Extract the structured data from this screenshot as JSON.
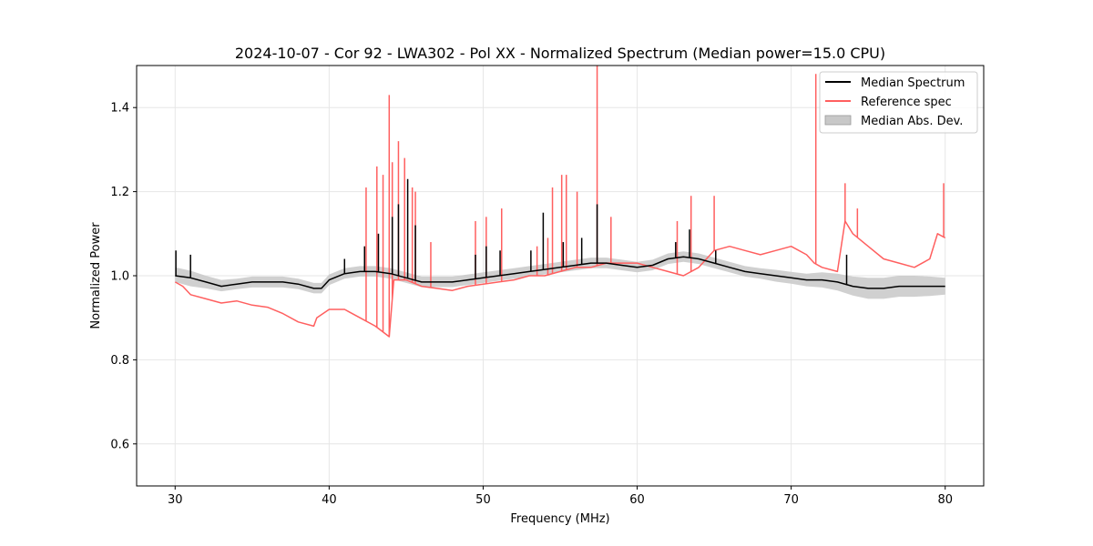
{
  "chart_data": {
    "type": "line",
    "title": "2024-10-07 - Cor 92 - LWA302 - Pol XX - Normalized Spectrum (Median power=15.0 CPU)",
    "xlabel": "Frequency (MHz)",
    "ylabel": "Normalized Power",
    "xlim": [
      27.5,
      82.5
    ],
    "ylim": [
      0.5,
      1.5
    ],
    "xticks": [
      30,
      40,
      50,
      60,
      70,
      80
    ],
    "yticks": [
      0.6,
      0.8,
      1.0,
      1.2,
      1.4
    ],
    "grid": true,
    "legend_position": "top-right",
    "legend": [
      "Median Spectrum",
      "Reference spec",
      "Median Abs. Dev."
    ],
    "series": [
      {
        "name": "Median Spectrum",
        "color": "#000000",
        "x": [
          30,
          31,
          32,
          33,
          34,
          35,
          36,
          37,
          38,
          39,
          39.5,
          40,
          41,
          42,
          43,
          44,
          45,
          46,
          47,
          48,
          49,
          50,
          51,
          52,
          53,
          54,
          55,
          56,
          57,
          58,
          59,
          60,
          61,
          62,
          63,
          64,
          65,
          66,
          67,
          68,
          69,
          70,
          71,
          72,
          73,
          74,
          75,
          76,
          77,
          78,
          79,
          80
        ],
        "y": [
          1.0,
          0.995,
          0.985,
          0.975,
          0.98,
          0.985,
          0.985,
          0.985,
          0.98,
          0.97,
          0.97,
          0.99,
          1.005,
          1.01,
          1.01,
          1.005,
          0.995,
          0.985,
          0.985,
          0.985,
          0.99,
          0.995,
          1.0,
          1.005,
          1.01,
          1.015,
          1.02,
          1.025,
          1.03,
          1.03,
          1.025,
          1.02,
          1.025,
          1.04,
          1.045,
          1.04,
          1.03,
          1.02,
          1.01,
          1.005,
          1.0,
          0.995,
          0.99,
          0.99,
          0.985,
          0.975,
          0.97,
          0.97,
          0.975,
          0.975,
          0.975,
          0.975
        ],
        "spikes": [
          [
            30.05,
            1.06
          ],
          [
            31.0,
            1.05
          ],
          [
            41.0,
            1.04
          ],
          [
            42.3,
            1.07
          ],
          [
            43.2,
            1.1
          ],
          [
            44.1,
            1.14
          ],
          [
            44.5,
            1.17
          ],
          [
            45.1,
            1.23
          ],
          [
            45.6,
            1.12
          ],
          [
            49.5,
            1.05
          ],
          [
            50.2,
            1.07
          ],
          [
            51.1,
            1.06
          ],
          [
            53.1,
            1.06
          ],
          [
            53.9,
            1.15
          ],
          [
            55.2,
            1.08
          ],
          [
            56.4,
            1.09
          ],
          [
            57.4,
            1.17
          ],
          [
            62.5,
            1.08
          ],
          [
            63.4,
            1.11
          ],
          [
            65.1,
            1.06
          ],
          [
            73.6,
            1.05
          ]
        ],
        "mad_lower": [
          0.985,
          0.975,
          0.97,
          0.963,
          0.968,
          0.972,
          0.972,
          0.972,
          0.968,
          0.958,
          0.958,
          0.978,
          0.993,
          0.998,
          0.998,
          0.993,
          0.983,
          0.973,
          0.973,
          0.973,
          0.978,
          0.983,
          0.988,
          0.993,
          0.998,
          1.003,
          1.008,
          1.013,
          1.018,
          1.018,
          1.013,
          1.008,
          1.013,
          1.028,
          1.033,
          1.028,
          1.018,
          1.008,
          0.998,
          0.993,
          0.986,
          0.981,
          0.975,
          0.972,
          0.965,
          0.953,
          0.945,
          0.945,
          0.95,
          0.95,
          0.952,
          0.955
        ],
        "mad_upper": [
          1.02,
          1.012,
          1.0,
          0.99,
          0.993,
          0.998,
          0.998,
          0.998,
          0.993,
          0.983,
          0.983,
          1.003,
          1.018,
          1.023,
          1.023,
          1.018,
          1.008,
          0.998,
          0.998,
          0.998,
          1.003,
          1.008,
          1.013,
          1.018,
          1.023,
          1.028,
          1.033,
          1.038,
          1.043,
          1.043,
          1.038,
          1.033,
          1.038,
          1.053,
          1.058,
          1.053,
          1.043,
          1.033,
          1.023,
          1.018,
          1.014,
          1.009,
          1.005,
          1.008,
          1.005,
          0.998,
          0.995,
          0.995,
          1.0,
          1.0,
          0.998,
          0.995
        ]
      },
      {
        "name": "Reference spec",
        "color": "#ff5f5f",
        "x": [
          30,
          30.5,
          31,
          32,
          33,
          34,
          35,
          36,
          37,
          38,
          39,
          39.2,
          40,
          41,
          42,
          43,
          43.9,
          44.2,
          45,
          46,
          47,
          48,
          49,
          50,
          51,
          52,
          53,
          54,
          55,
          56,
          57,
          58,
          59,
          60,
          61,
          62,
          63,
          64,
          65,
          66,
          67,
          68,
          69,
          70,
          71,
          71.5,
          72,
          73,
          73.5,
          74,
          75,
          76,
          77,
          78,
          79,
          79.5,
          80
        ],
        "y": [
          0.985,
          0.975,
          0.955,
          0.945,
          0.935,
          0.94,
          0.93,
          0.925,
          0.91,
          0.89,
          0.88,
          0.9,
          0.92,
          0.92,
          0.9,
          0.88,
          0.855,
          0.99,
          0.99,
          0.975,
          0.97,
          0.965,
          0.975,
          0.98,
          0.985,
          0.99,
          1.0,
          1.0,
          1.01,
          1.02,
          1.02,
          1.03,
          1.03,
          1.03,
          1.02,
          1.01,
          1.0,
          1.02,
          1.06,
          1.07,
          1.06,
          1.05,
          1.06,
          1.07,
          1.05,
          1.03,
          1.02,
          1.01,
          1.13,
          1.1,
          1.07,
          1.04,
          1.03,
          1.02,
          1.04,
          1.1,
          1.09
        ],
        "spikes": [
          [
            42.4,
            1.21
          ],
          [
            43.1,
            1.26
          ],
          [
            43.5,
            1.24
          ],
          [
            43.9,
            1.43
          ],
          [
            44.1,
            1.27
          ],
          [
            44.5,
            1.32
          ],
          [
            44.9,
            1.28
          ],
          [
            45.4,
            1.21
          ],
          [
            45.6,
            1.2
          ],
          [
            46.6,
            1.08
          ],
          [
            49.5,
            1.13
          ],
          [
            50.2,
            1.14
          ],
          [
            51.2,
            1.16
          ],
          [
            53.5,
            1.07
          ],
          [
            54.2,
            1.09
          ],
          [
            54.5,
            1.21
          ],
          [
            55.1,
            1.24
          ],
          [
            55.4,
            1.24
          ],
          [
            56.1,
            1.2
          ],
          [
            57.4,
            1.5
          ],
          [
            58.3,
            1.14
          ],
          [
            62.6,
            1.13
          ],
          [
            63.5,
            1.19
          ],
          [
            65.0,
            1.19
          ],
          [
            71.6,
            1.48
          ],
          [
            73.5,
            1.22
          ],
          [
            74.3,
            1.16
          ],
          [
            79.9,
            1.22
          ]
        ]
      }
    ]
  }
}
